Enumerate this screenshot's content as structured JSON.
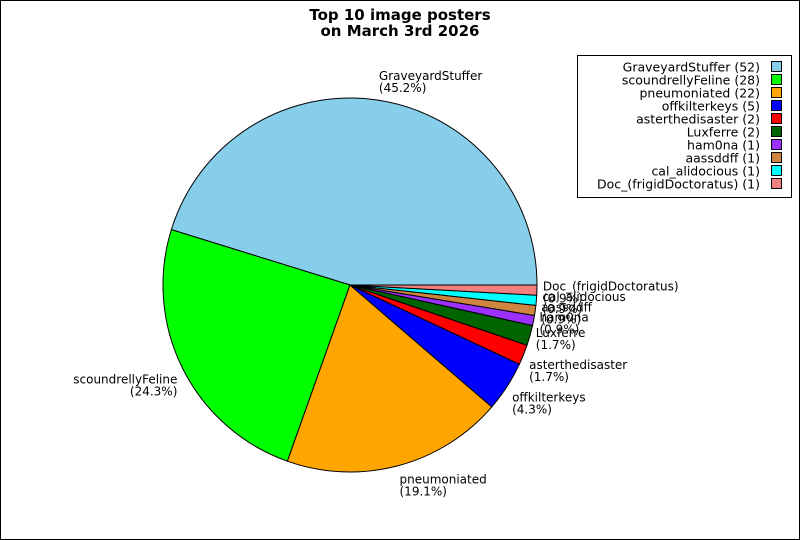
{
  "chart_data": {
    "type": "pie",
    "title": [
      "Top 10 image posters",
      "on March 3rd 2026"
    ],
    "start_angle_deg": 0,
    "direction": "counterclockwise",
    "legend_position": "top-right",
    "slices": [
      {
        "name": "GraveyardStuffer",
        "value": 52,
        "percent": "45.2%",
        "legend": "GraveyardStuffer (52)",
        "color": "#87ceeb"
      },
      {
        "name": "scoundrellyFeline",
        "value": 28,
        "percent": "24.3%",
        "legend": "scoundrellyFeline (28)",
        "color": "#00ff00"
      },
      {
        "name": "pneumoniated",
        "value": 22,
        "percent": "19.1%",
        "legend": "pneumoniated (22)",
        "color": "#ffa500"
      },
      {
        "name": "offkilterkeys",
        "value": 5,
        "percent": "4.3%",
        "legend": "offkilterkeys (5)",
        "color": "#0000ff"
      },
      {
        "name": "asterthedisaster",
        "value": 2,
        "percent": "1.7%",
        "legend": "asterthedisaster (2)",
        "color": "#ff0000"
      },
      {
        "name": "Luxferre",
        "value": 2,
        "percent": "1.7%",
        "legend": "Luxferre (2)",
        "color": "#006400"
      },
      {
        "name": "ham0na",
        "value": 1,
        "percent": "0.9%",
        "legend": "ham0na (1)",
        "color": "#9b30ff"
      },
      {
        "name": "aassddff",
        "value": 1,
        "percent": "0.9%",
        "legend": "aassddff (1)",
        "color": "#cd853f"
      },
      {
        "name": "cal_alidocious",
        "value": 1,
        "percent": "0.9%",
        "legend": "cal_alidocious (1)",
        "color": "#00ffff"
      },
      {
        "name": "Doc_(frigidDoctoratus)",
        "value": 1,
        "percent": "0.9%",
        "legend": "Doc_(frigidDoctoratus) (1)",
        "color": "#f08080"
      }
    ]
  }
}
